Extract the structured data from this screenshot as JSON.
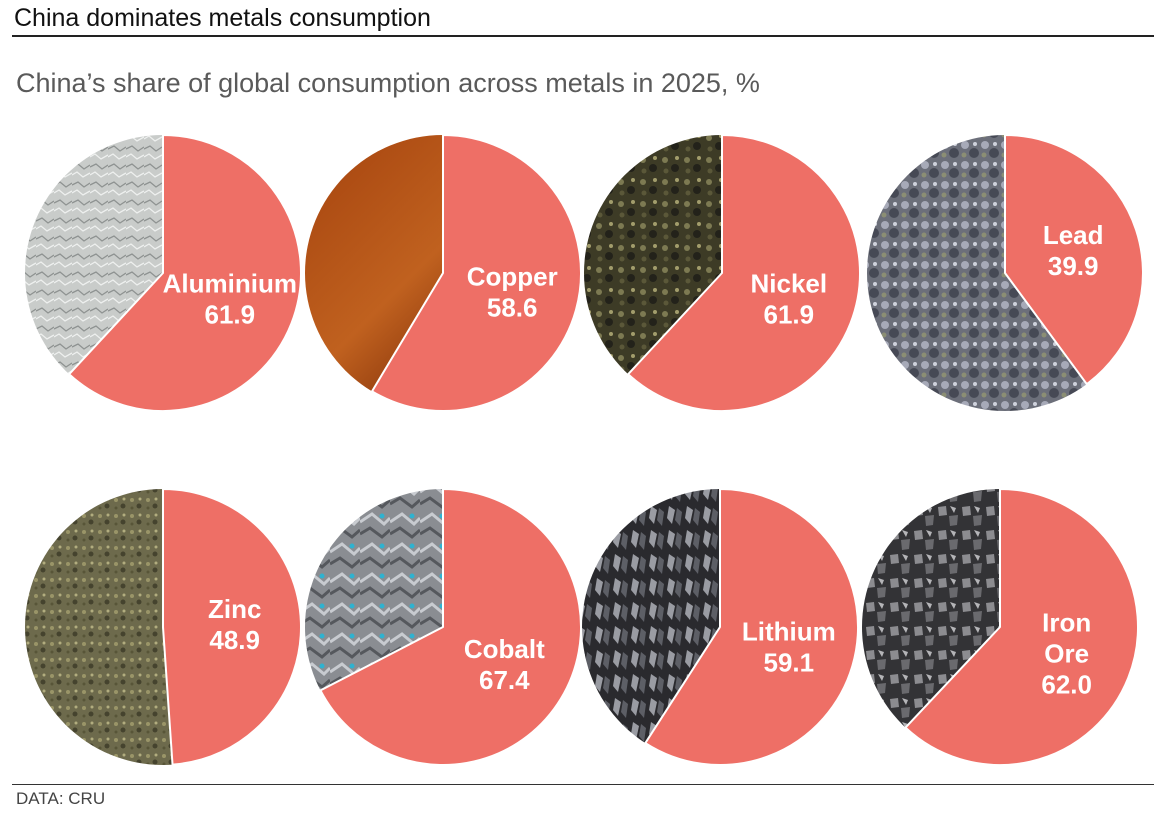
{
  "header": {
    "title": "China dominates metals consumption",
    "subtitle": "China’s share of global consumption across metals in 2025, %"
  },
  "footer": {
    "source": "DATA: CRU"
  },
  "colors": {
    "slice": "#ee6f66",
    "divider": "#ffffff"
  },
  "chart_data": {
    "type": "pie",
    "title": "China’s share of global consumption across metals in 2025, %",
    "unit": "%",
    "layout": "2 rows x 4 small-multiple pies",
    "series": [
      {
        "name": "Aluminium",
        "label_lines": [
          "Aluminium"
        ],
        "value": 61.9,
        "value_text": "61.9",
        "texture": "aluminium"
      },
      {
        "name": "Copper",
        "label_lines": [
          "Copper"
        ],
        "value": 58.6,
        "value_text": "58.6",
        "texture": "copper"
      },
      {
        "name": "Nickel",
        "label_lines": [
          "Nickel"
        ],
        "value": 61.9,
        "value_text": "61.9",
        "texture": "nickel"
      },
      {
        "name": "Lead",
        "label_lines": [
          "Lead"
        ],
        "value": 39.9,
        "value_text": "39.9",
        "texture": "lead"
      },
      {
        "name": "Zinc",
        "label_lines": [
          "Zinc"
        ],
        "value": 48.9,
        "value_text": "48.9",
        "texture": "zinc"
      },
      {
        "name": "Cobalt",
        "label_lines": [
          "Cobalt"
        ],
        "value": 67.4,
        "value_text": "67.4",
        "texture": "cobalt"
      },
      {
        "name": "Lithium",
        "label_lines": [
          "Lithium"
        ],
        "value": 59.1,
        "value_text": "59.1",
        "texture": "lithium"
      },
      {
        "name": "Iron Ore",
        "label_lines": [
          "Iron",
          "Ore"
        ],
        "value": 62.0,
        "value_text": "62.0",
        "texture": "ironore"
      }
    ]
  }
}
